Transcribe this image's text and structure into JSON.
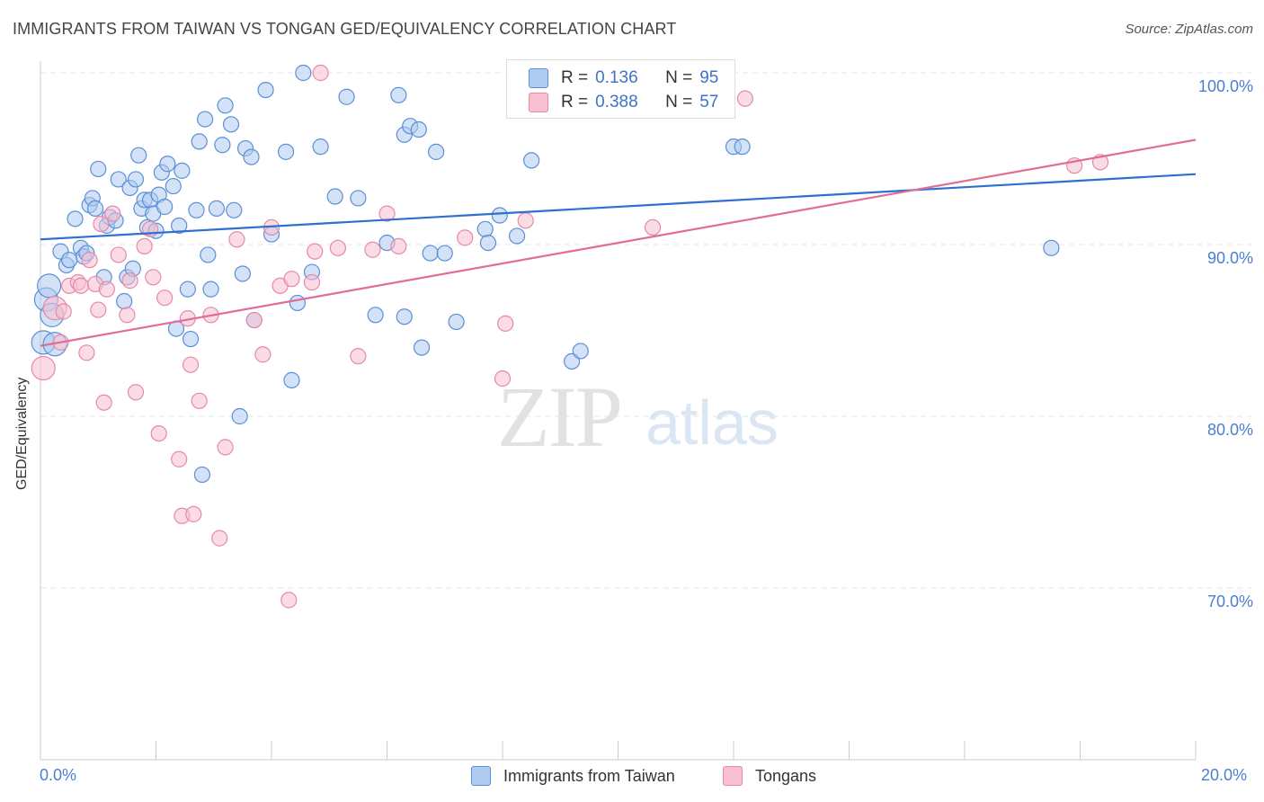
{
  "header": {
    "title": "IMMIGRANTS FROM TAIWAN VS TONGAN GED/EQUIVALENCY CORRELATION CHART",
    "source": "Source: ZipAtlas.com"
  },
  "watermark": {
    "zip": "ZIP",
    "atlas": "atlas"
  },
  "legend_top": {
    "rows": [
      {
        "r_label": "R =",
        "r_value": "0.136",
        "n_label": "N =",
        "n_value": "95"
      },
      {
        "r_label": "R =",
        "r_value": "0.388",
        "n_label": "N =",
        "n_value": "57"
      }
    ]
  },
  "legend_bottom": {
    "items": [
      {
        "label": "Immigrants from Taiwan"
      },
      {
        "label": "Tongans"
      }
    ]
  },
  "colors": {
    "taiwan_fill": "#aecbf0",
    "taiwan_stroke": "#5b8fd6",
    "taiwan_line": "#2e6fcf",
    "tongan_fill": "#f7bfd0",
    "tongan_stroke": "#e58aa6",
    "tongan_line": "#e06c97",
    "tick_text": "#4a7fd0",
    "grid": "#e6e6e6"
  },
  "chart_data": {
    "type": "scatter",
    "title": "IMMIGRANTS FROM TAIWAN VS TONGAN GED/EQUIVALENCY CORRELATION CHART",
    "xlabel": "",
    "ylabel": "GED/Equivalency",
    "xlim": [
      0,
      20
    ],
    "ylim": [
      60,
      101
    ],
    "x_tick_labels": [
      "0.0%",
      "20.0%"
    ],
    "y_ticks": [
      70,
      80,
      90,
      100
    ],
    "y_tick_labels": [
      "70.0%",
      "80.0%",
      "90.0%",
      "100.0%"
    ],
    "grid": true,
    "legend_position": "bottom",
    "series": [
      {
        "name": "Immigrants from Taiwan",
        "R": 0.136,
        "N": 95,
        "trend": {
          "x": [
            0,
            20
          ],
          "y": [
            90.3,
            94.1
          ]
        },
        "points": [
          [
            0.05,
            84.3
          ],
          [
            0.1,
            86.8
          ],
          [
            0.15,
            87.6
          ],
          [
            0.2,
            85.9
          ],
          [
            0.25,
            84.2
          ],
          [
            0.35,
            89.6
          ],
          [
            0.45,
            88.8
          ],
          [
            0.5,
            89.1
          ],
          [
            0.6,
            91.5
          ],
          [
            0.7,
            89.8
          ],
          [
            0.75,
            89.3
          ],
          [
            0.8,
            89.5
          ],
          [
            0.85,
            92.3
          ],
          [
            0.9,
            92.7
          ],
          [
            0.95,
            92.1
          ],
          [
            1.0,
            94.4
          ],
          [
            1.1,
            88.1
          ],
          [
            1.15,
            91.1
          ],
          [
            1.2,
            91.6
          ],
          [
            1.3,
            91.4
          ],
          [
            1.35,
            93.8
          ],
          [
            1.45,
            86.7
          ],
          [
            1.5,
            88.1
          ],
          [
            1.55,
            93.3
          ],
          [
            1.6,
            88.6
          ],
          [
            1.65,
            93.8
          ],
          [
            1.7,
            95.2
          ],
          [
            1.75,
            92.1
          ],
          [
            1.8,
            92.6
          ],
          [
            1.85,
            91.0
          ],
          [
            1.9,
            92.6
          ],
          [
            1.95,
            91.8
          ],
          [
            2.0,
            90.8
          ],
          [
            2.05,
            92.9
          ],
          [
            2.1,
            94.2
          ],
          [
            2.15,
            92.2
          ],
          [
            2.2,
            94.7
          ],
          [
            2.3,
            93.4
          ],
          [
            2.35,
            85.1
          ],
          [
            2.4,
            91.1
          ],
          [
            2.45,
            94.3
          ],
          [
            2.55,
            87.4
          ],
          [
            2.6,
            84.5
          ],
          [
            2.7,
            92.0
          ],
          [
            2.75,
            96.0
          ],
          [
            2.8,
            76.6
          ],
          [
            2.85,
            97.3
          ],
          [
            2.9,
            89.4
          ],
          [
            2.95,
            87.4
          ],
          [
            3.05,
            92.1
          ],
          [
            3.15,
            95.8
          ],
          [
            3.2,
            98.1
          ],
          [
            3.3,
            97.0
          ],
          [
            3.35,
            92.0
          ],
          [
            3.45,
            80.0
          ],
          [
            3.5,
            88.3
          ],
          [
            3.55,
            95.6
          ],
          [
            3.65,
            95.1
          ],
          [
            3.7,
            85.6
          ],
          [
            3.9,
            99.0
          ],
          [
            4.0,
            90.6
          ],
          [
            4.25,
            95.4
          ],
          [
            4.35,
            82.1
          ],
          [
            4.45,
            86.6
          ],
          [
            4.55,
            100.0
          ],
          [
            4.7,
            88.4
          ],
          [
            4.85,
            95.7
          ],
          [
            5.1,
            92.8
          ],
          [
            5.3,
            98.6
          ],
          [
            5.5,
            92.7
          ],
          [
            5.8,
            85.9
          ],
          [
            6.0,
            90.1
          ],
          [
            6.2,
            98.7
          ],
          [
            6.3,
            85.8
          ],
          [
            6.3,
            96.4
          ],
          [
            6.4,
            96.9
          ],
          [
            6.55,
            96.7
          ],
          [
            6.6,
            84.0
          ],
          [
            6.75,
            89.5
          ],
          [
            6.85,
            95.4
          ],
          [
            7.0,
            89.5
          ],
          [
            7.2,
            85.5
          ],
          [
            7.7,
            90.9
          ],
          [
            7.75,
            90.1
          ],
          [
            7.95,
            91.7
          ],
          [
            8.25,
            90.5
          ],
          [
            8.5,
            94.9
          ],
          [
            9.2,
            83.2
          ],
          [
            9.35,
            83.8
          ],
          [
            11.8,
            100.0
          ],
          [
            12.0,
            95.7
          ],
          [
            12.15,
            95.7
          ],
          [
            17.5,
            89.8
          ]
        ]
      },
      {
        "name": "Tongans",
        "R": 0.388,
        "N": 57,
        "trend": {
          "x": [
            0,
            20
          ],
          "y": [
            84.1,
            96.1
          ]
        },
        "points": [
          [
            0.05,
            82.8
          ],
          [
            0.25,
            86.3
          ],
          [
            0.35,
            84.3
          ],
          [
            0.4,
            86.1
          ],
          [
            0.5,
            87.6
          ],
          [
            0.65,
            87.8
          ],
          [
            0.7,
            87.6
          ],
          [
            0.8,
            83.7
          ],
          [
            0.85,
            89.1
          ],
          [
            0.95,
            87.7
          ],
          [
            1.0,
            86.2
          ],
          [
            1.05,
            91.2
          ],
          [
            1.1,
            80.8
          ],
          [
            1.15,
            87.4
          ],
          [
            1.25,
            91.8
          ],
          [
            1.35,
            89.4
          ],
          [
            1.5,
            85.9
          ],
          [
            1.55,
            87.9
          ],
          [
            1.65,
            81.4
          ],
          [
            1.8,
            89.9
          ],
          [
            1.9,
            90.9
          ],
          [
            1.95,
            88.1
          ],
          [
            2.05,
            79.0
          ],
          [
            2.15,
            86.9
          ],
          [
            2.4,
            77.5
          ],
          [
            2.45,
            74.2
          ],
          [
            2.55,
            85.7
          ],
          [
            2.6,
            83.0
          ],
          [
            2.65,
            74.3
          ],
          [
            2.75,
            80.9
          ],
          [
            2.95,
            85.9
          ],
          [
            3.1,
            72.9
          ],
          [
            3.2,
            78.2
          ],
          [
            3.4,
            90.3
          ],
          [
            3.7,
            85.6
          ],
          [
            3.85,
            83.6
          ],
          [
            4.0,
            91.0
          ],
          [
            4.15,
            87.6
          ],
          [
            4.35,
            88.0
          ],
          [
            4.3,
            69.3
          ],
          [
            4.7,
            87.8
          ],
          [
            4.75,
            89.6
          ],
          [
            4.85,
            100.0
          ],
          [
            5.15,
            89.8
          ],
          [
            5.5,
            83.5
          ],
          [
            5.75,
            89.7
          ],
          [
            6.0,
            91.8
          ],
          [
            6.2,
            89.9
          ],
          [
            7.35,
            90.4
          ],
          [
            8.0,
            82.2
          ],
          [
            8.05,
            85.4
          ],
          [
            8.4,
            91.4
          ],
          [
            10.6,
            91.0
          ],
          [
            12.2,
            98.5
          ],
          [
            17.9,
            94.6
          ],
          [
            18.35,
            94.8
          ]
        ]
      }
    ]
  }
}
